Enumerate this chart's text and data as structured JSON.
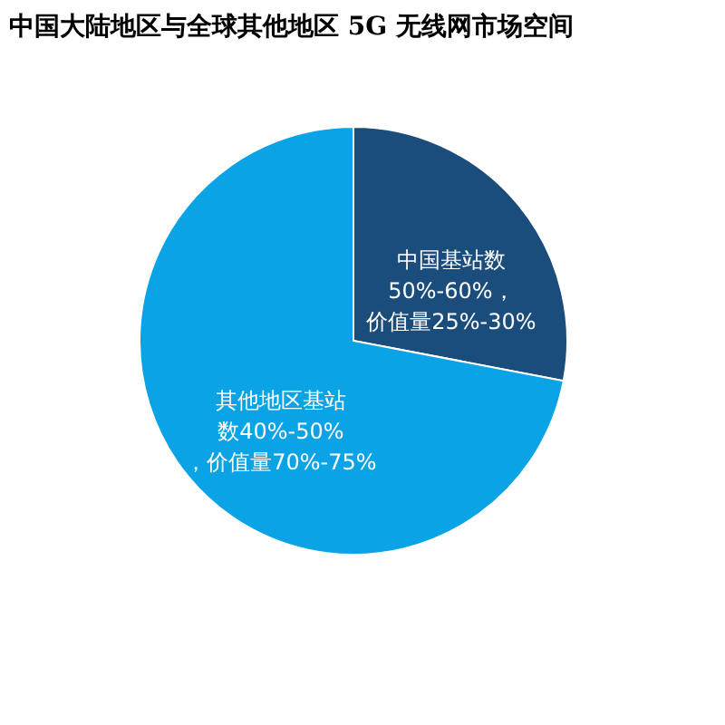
{
  "chart_data": {
    "type": "pie",
    "title": "中国大陆地区与全球其他地区 5G 无线网市场空间",
    "categories": [
      "中国基站数50%-60%，价值量25%-30%",
      "其他地区基站数40%-50%，价值量70%-75%"
    ],
    "values": [
      28,
      72
    ],
    "colors": [
      "#1a4d7c",
      "#0aa3e6"
    ],
    "legend": false
  }
}
